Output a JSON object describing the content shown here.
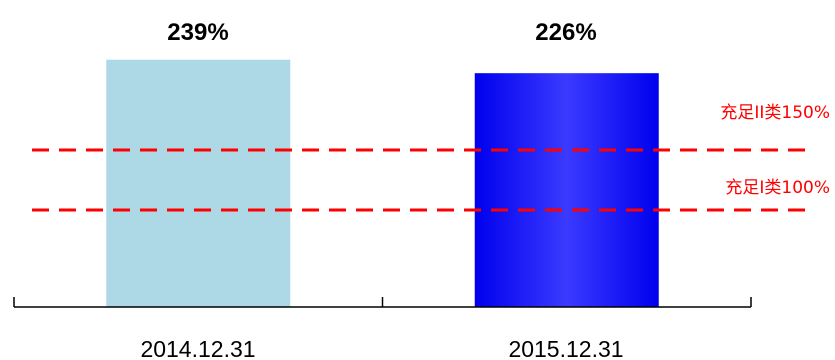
{
  "chart_data": {
    "type": "bar",
    "title": "",
    "xlabel": "",
    "ylabel": "",
    "categories": [
      "2014.12.31",
      "2015.12.31"
    ],
    "values": [
      239,
      226
    ],
    "value_labels": [
      "239%",
      "226%"
    ],
    "bar_colors": [
      "#add8e6",
      "#1a1aff"
    ],
    "ylim": [
      0,
      260
    ],
    "grid": false,
    "reference_lines": [
      {
        "label": "充足II类150%",
        "value": 150,
        "color": "#ff0000",
        "style": "dashed"
      },
      {
        "label": "充足I类100%",
        "value": 100,
        "color": "#ff0000",
        "style": "dashed"
      }
    ]
  }
}
